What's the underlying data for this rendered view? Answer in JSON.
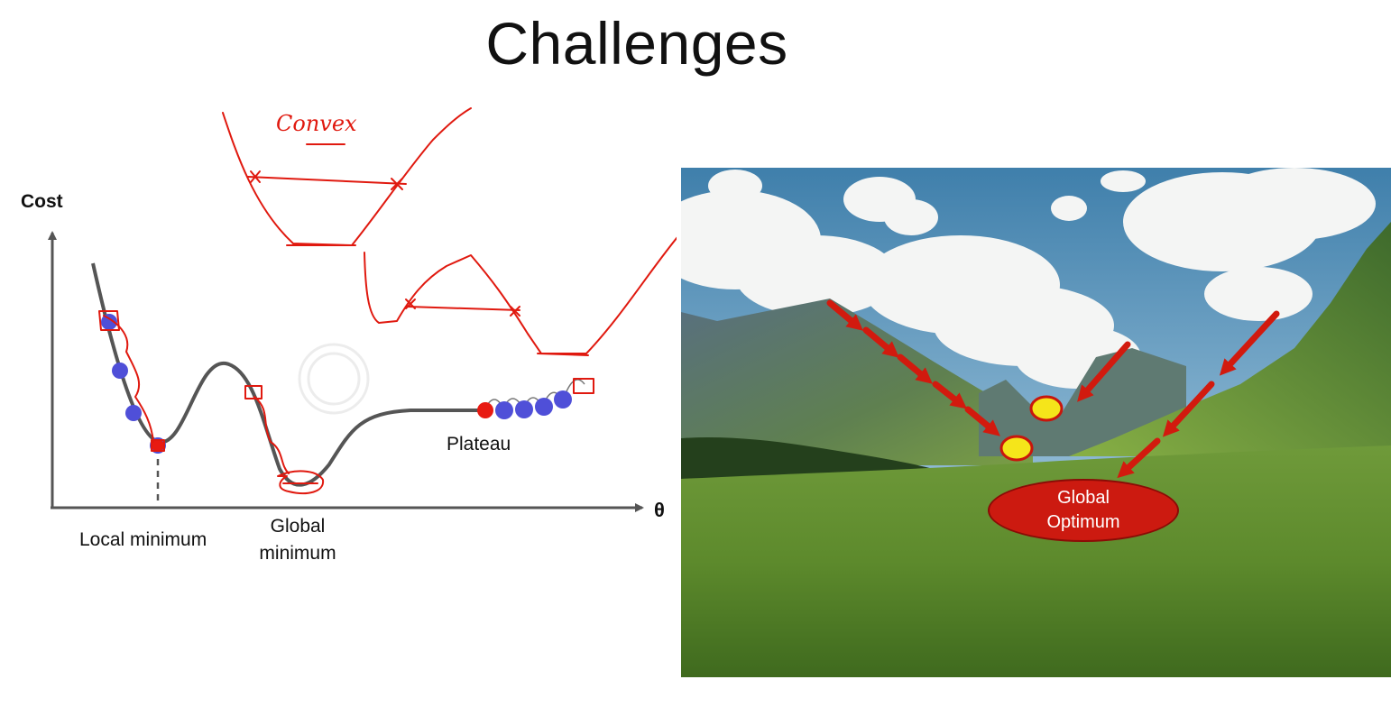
{
  "slide": {
    "title": "Challenges"
  },
  "diagram": {
    "y_axis_label": "Cost",
    "x_axis_label": "θ",
    "local_minimum_label": "Local minimum",
    "global_minimum_label_line1": "Global",
    "global_minimum_label_line2": "minimum",
    "plateau_label": "Plateau",
    "handwritten_note": "Convex",
    "colors": {
      "curve": "#555555",
      "ink": "#e0190f",
      "ball": "#4f4fd8",
      "ball_start": "#e81a12"
    }
  },
  "photo": {
    "badge_line1": "Global",
    "badge_line2": "Optimum",
    "colors": {
      "arrow": "#d21a0e",
      "marker": "#f5e51a",
      "badge": "#cc1a10"
    }
  }
}
